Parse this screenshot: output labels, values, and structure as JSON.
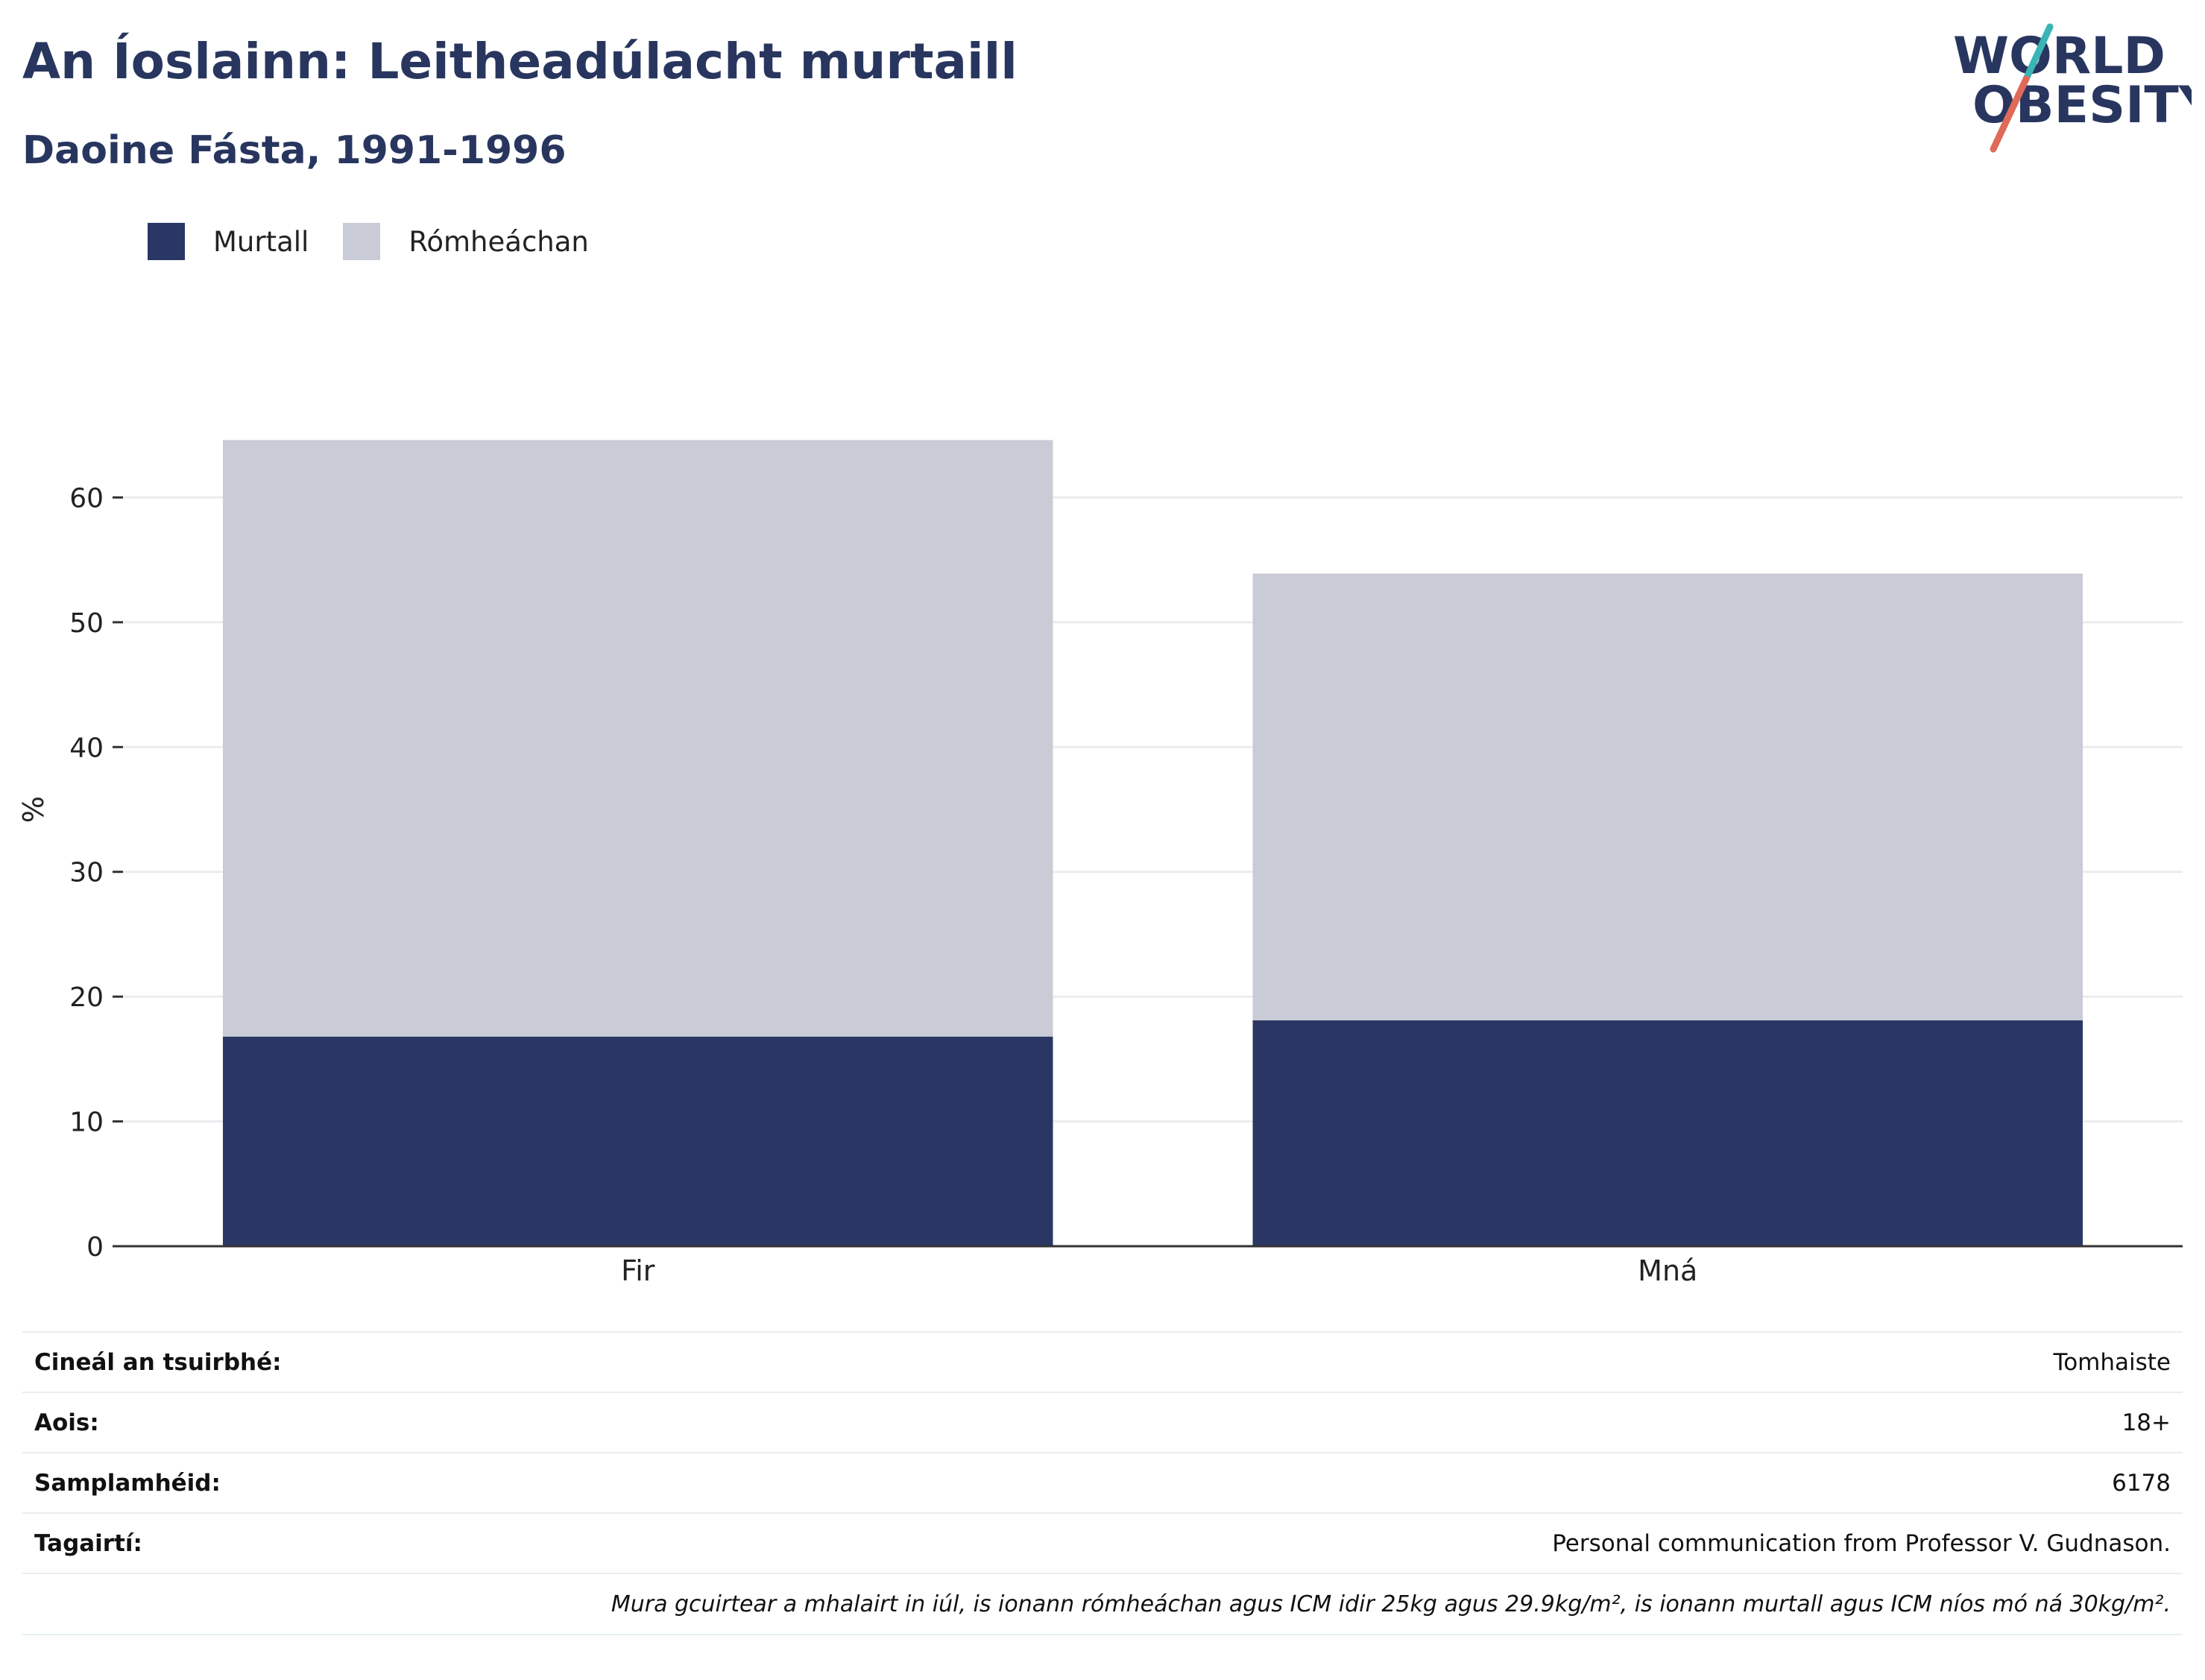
{
  "header": {
    "title": "An Íoslainn: Leitheadúlacht murtaill",
    "subtitle": "Daoine Fásta, 1991-1996"
  },
  "logo": {
    "line1": "WORLD",
    "line2": "OBESITY",
    "icon": "world-obesity-logo"
  },
  "colors": {
    "obesity": "#2a3765",
    "overweight": "#c9cbd7",
    "accent_teal": "#3ab5b5",
    "accent_red": "#e06a5a"
  },
  "chart_data": {
    "type": "bar",
    "stacked": true,
    "categories": [
      "Fir",
      "Mná"
    ],
    "series": [
      {
        "name": "Murtall",
        "values": [
          16.8,
          18.1
        ],
        "color": "#2a3765"
      },
      {
        "name": "Rómheáchan",
        "values": [
          47.8,
          35.8
        ],
        "color": "#c9cbd7"
      }
    ],
    "title": "An Íoslainn: Leitheadúlacht murtaill",
    "subtitle": "Daoine Fásta, 1991-1996",
    "xlabel": "",
    "ylabel": "%",
    "yticks": [
      0,
      10,
      20,
      30,
      40,
      50,
      60
    ],
    "ylim": [
      0,
      70
    ],
    "grid": true,
    "legend": "top-left"
  },
  "info": {
    "rows": [
      {
        "label": "Cineál an tsuirbhé:",
        "value": "Tomhaiste"
      },
      {
        "label": "Aois:",
        "value": "18+"
      },
      {
        "label": "Samplamhéid:",
        "value": "6178"
      },
      {
        "label": "Tagairtí:",
        "value": "Personal communication from Professor V. Gudnason."
      }
    ],
    "note": "Mura gcuirtear a mhalairt in iúl, is ionann rómheáchan agus ICM idir 25kg agus 29.9kg/m², is ionann murtall agus ICM níos mó ná 30kg/m²."
  }
}
